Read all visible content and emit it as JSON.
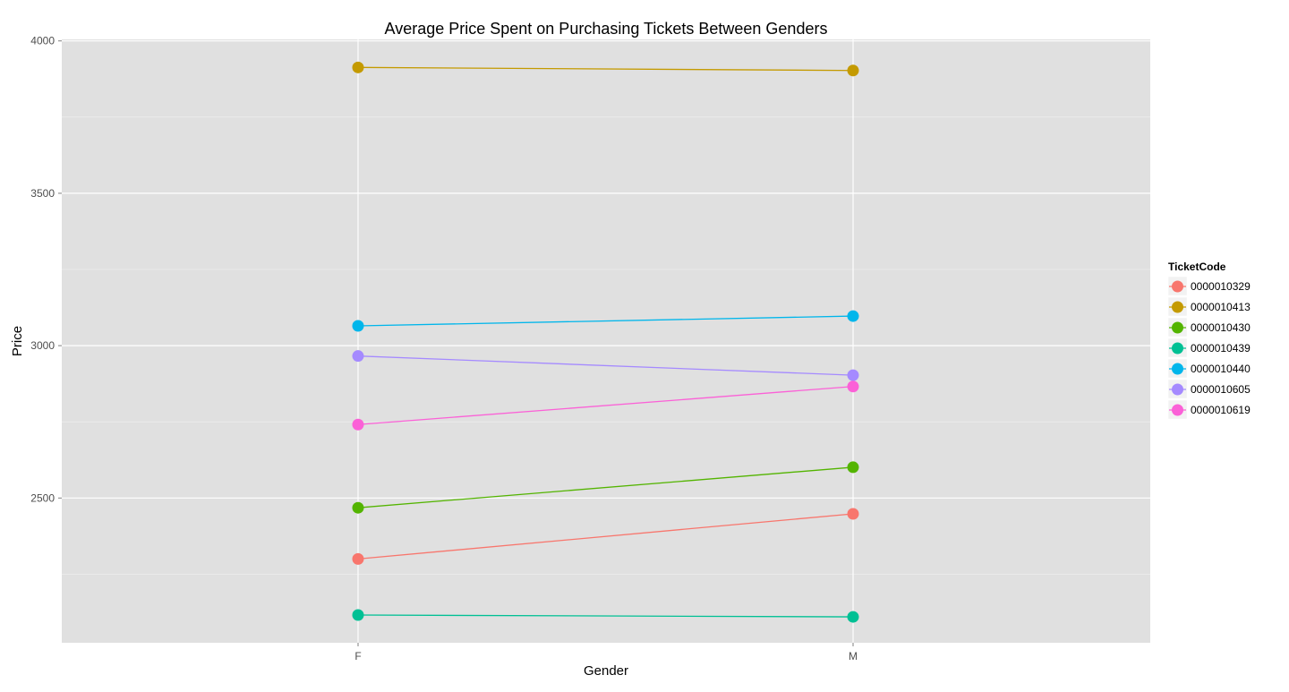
{
  "chart_data": {
    "type": "line",
    "title": "Average Price Spent on Purchasing Tickets Between Genders",
    "xlabel": "Gender",
    "ylabel": "Price",
    "categories": [
      "F",
      "M"
    ],
    "ylim": [
      2025,
      4005
    ],
    "yticks": [
      2500,
      3000,
      3500,
      4000
    ],
    "grid": true,
    "legend": {
      "title": "TicketCode",
      "placement": "right"
    },
    "series": [
      {
        "name": "0000010329",
        "color": "#F8766D",
        "values": [
          2300,
          2448
        ]
      },
      {
        "name": "0000010413",
        "color": "#C49A00",
        "values": [
          3913,
          3903
        ]
      },
      {
        "name": "0000010430",
        "color": "#53B400",
        "values": [
          2468,
          2601
        ]
      },
      {
        "name": "0000010439",
        "color": "#00C094",
        "values": [
          2116,
          2110
        ]
      },
      {
        "name": "0000010440",
        "color": "#00B6EB",
        "values": [
          3065,
          3097
        ]
      },
      {
        "name": "0000010605",
        "color": "#A58AFF",
        "values": [
          2966,
          2903
        ]
      },
      {
        "name": "0000010619",
        "color": "#FB61D7",
        "values": [
          2741,
          2866
        ]
      }
    ]
  }
}
